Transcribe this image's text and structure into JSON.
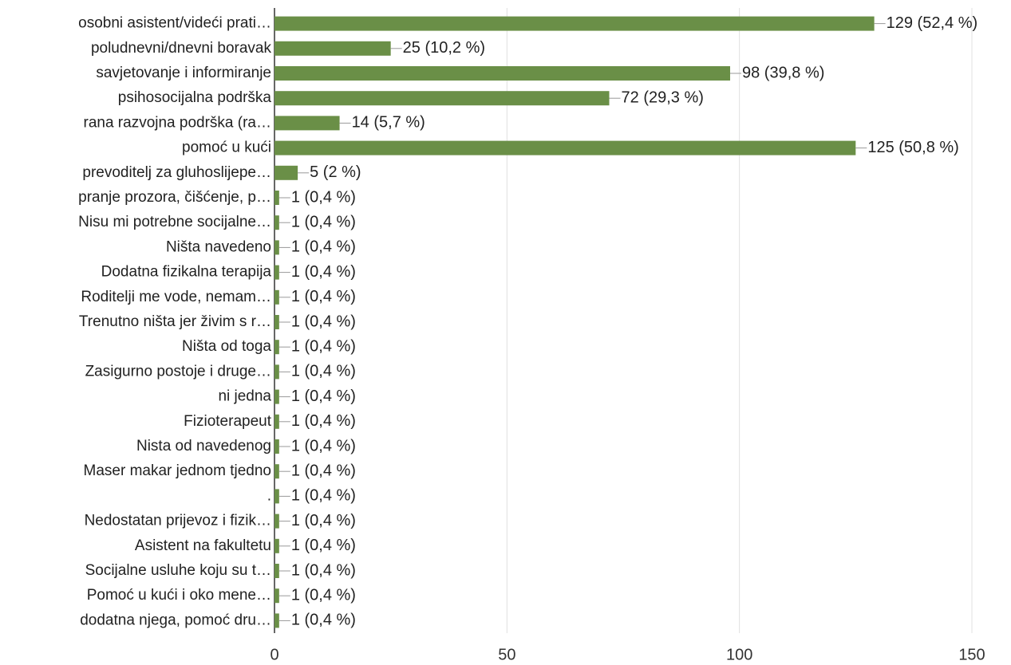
{
  "chart_data": {
    "type": "bar",
    "orientation": "horizontal",
    "categories": [
      "osobni asistent/videći prati…",
      "poludnevni/dnevni boravak",
      "savjetovanje i informiranje",
      "psihosocijalna podrška",
      "rana razvojna podrška (ra…",
      "pomoć u kući",
      "prevoditelj za gluhoslijepe…",
      "pranje prozora, čišćenje, p…",
      "Nisu mi potrebne socijalne…",
      "Ništa navedeno",
      "Dodatna fizikalna terapija",
      "Roditelji me vode, nemam…",
      "Trenutno ništa jer živim s r…",
      "Ništa od toga",
      "Zasigurno postoje i druge…",
      "ni jedna",
      "Fizioterapeut",
      "Nista od navedenog",
      "Maser makar jednom tjedno",
      ".",
      "Nedostatan prijevoz i fizik…",
      "Asistent na fakultetu",
      "Socijalne usluhe koju su t…",
      "Pomoć u kući i oko mene…",
      "dodatna njega, pomoć dru…"
    ],
    "values": [
      129,
      25,
      98,
      72,
      14,
      125,
      5,
      1,
      1,
      1,
      1,
      1,
      1,
      1,
      1,
      1,
      1,
      1,
      1,
      1,
      1,
      1,
      1,
      1,
      1
    ],
    "value_labels": [
      "129 (52,4 %)",
      "25 (10,2 %)",
      "98 (39,8 %)",
      "72 (29,3 %)",
      "14 (5,7 %)",
      "125 (50,8 %)",
      "5 (2 %)",
      "1 (0,4 %)",
      "1 (0,4 %)",
      "1 (0,4 %)",
      "1 (0,4 %)",
      "1 (0,4 %)",
      "1 (0,4 %)",
      "1 (0,4 %)",
      "1 (0,4 %)",
      "1 (0,4 %)",
      "1 (0,4 %)",
      "1 (0,4 %)",
      "1 (0,4 %)",
      "1 (0,4 %)",
      "1 (0,4 %)",
      "1 (0,4 %)",
      "1 (0,4 %)",
      "1 (0,4 %)",
      "1 (0,4 %)"
    ],
    "color": "#6a8f47",
    "xlim": [
      0,
      150
    ],
    "xticks": [
      0,
      50,
      100,
      150
    ],
    "grid": true
  }
}
